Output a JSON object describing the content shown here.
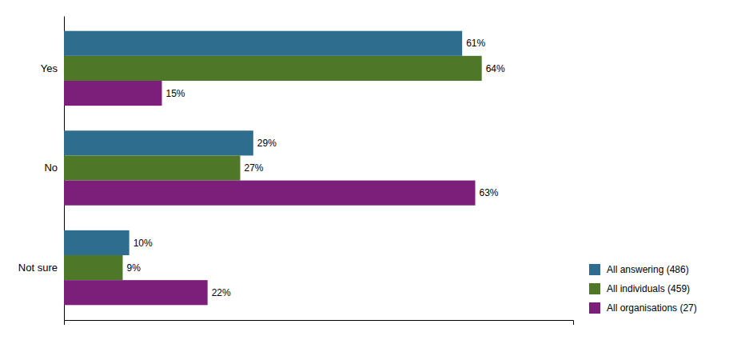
{
  "chart_data": {
    "type": "bar",
    "orientation": "horizontal",
    "categories": [
      "Yes",
      "No",
      "Not sure"
    ],
    "series": [
      {
        "name": "All answering (486)",
        "color": "#2e6d8e",
        "values": [
          61,
          29,
          10
        ],
        "value_labels": [
          "61%",
          "29%",
          "10%"
        ]
      },
      {
        "name": "All individuals (459)",
        "color": "#4e7728",
        "values": [
          64,
          27,
          9
        ],
        "value_labels": [
          "64%",
          "27%",
          "9%"
        ]
      },
      {
        "name": "All organisations (27)",
        "color": "#7b1f7a",
        "values": [
          15,
          63,
          22
        ],
        "value_labels": [
          "15%",
          "63%",
          "22%"
        ]
      }
    ],
    "xlim": [
      0,
      78
    ],
    "tick_labels": "y",
    "data_labels": true,
    "legend": "lower right"
  }
}
